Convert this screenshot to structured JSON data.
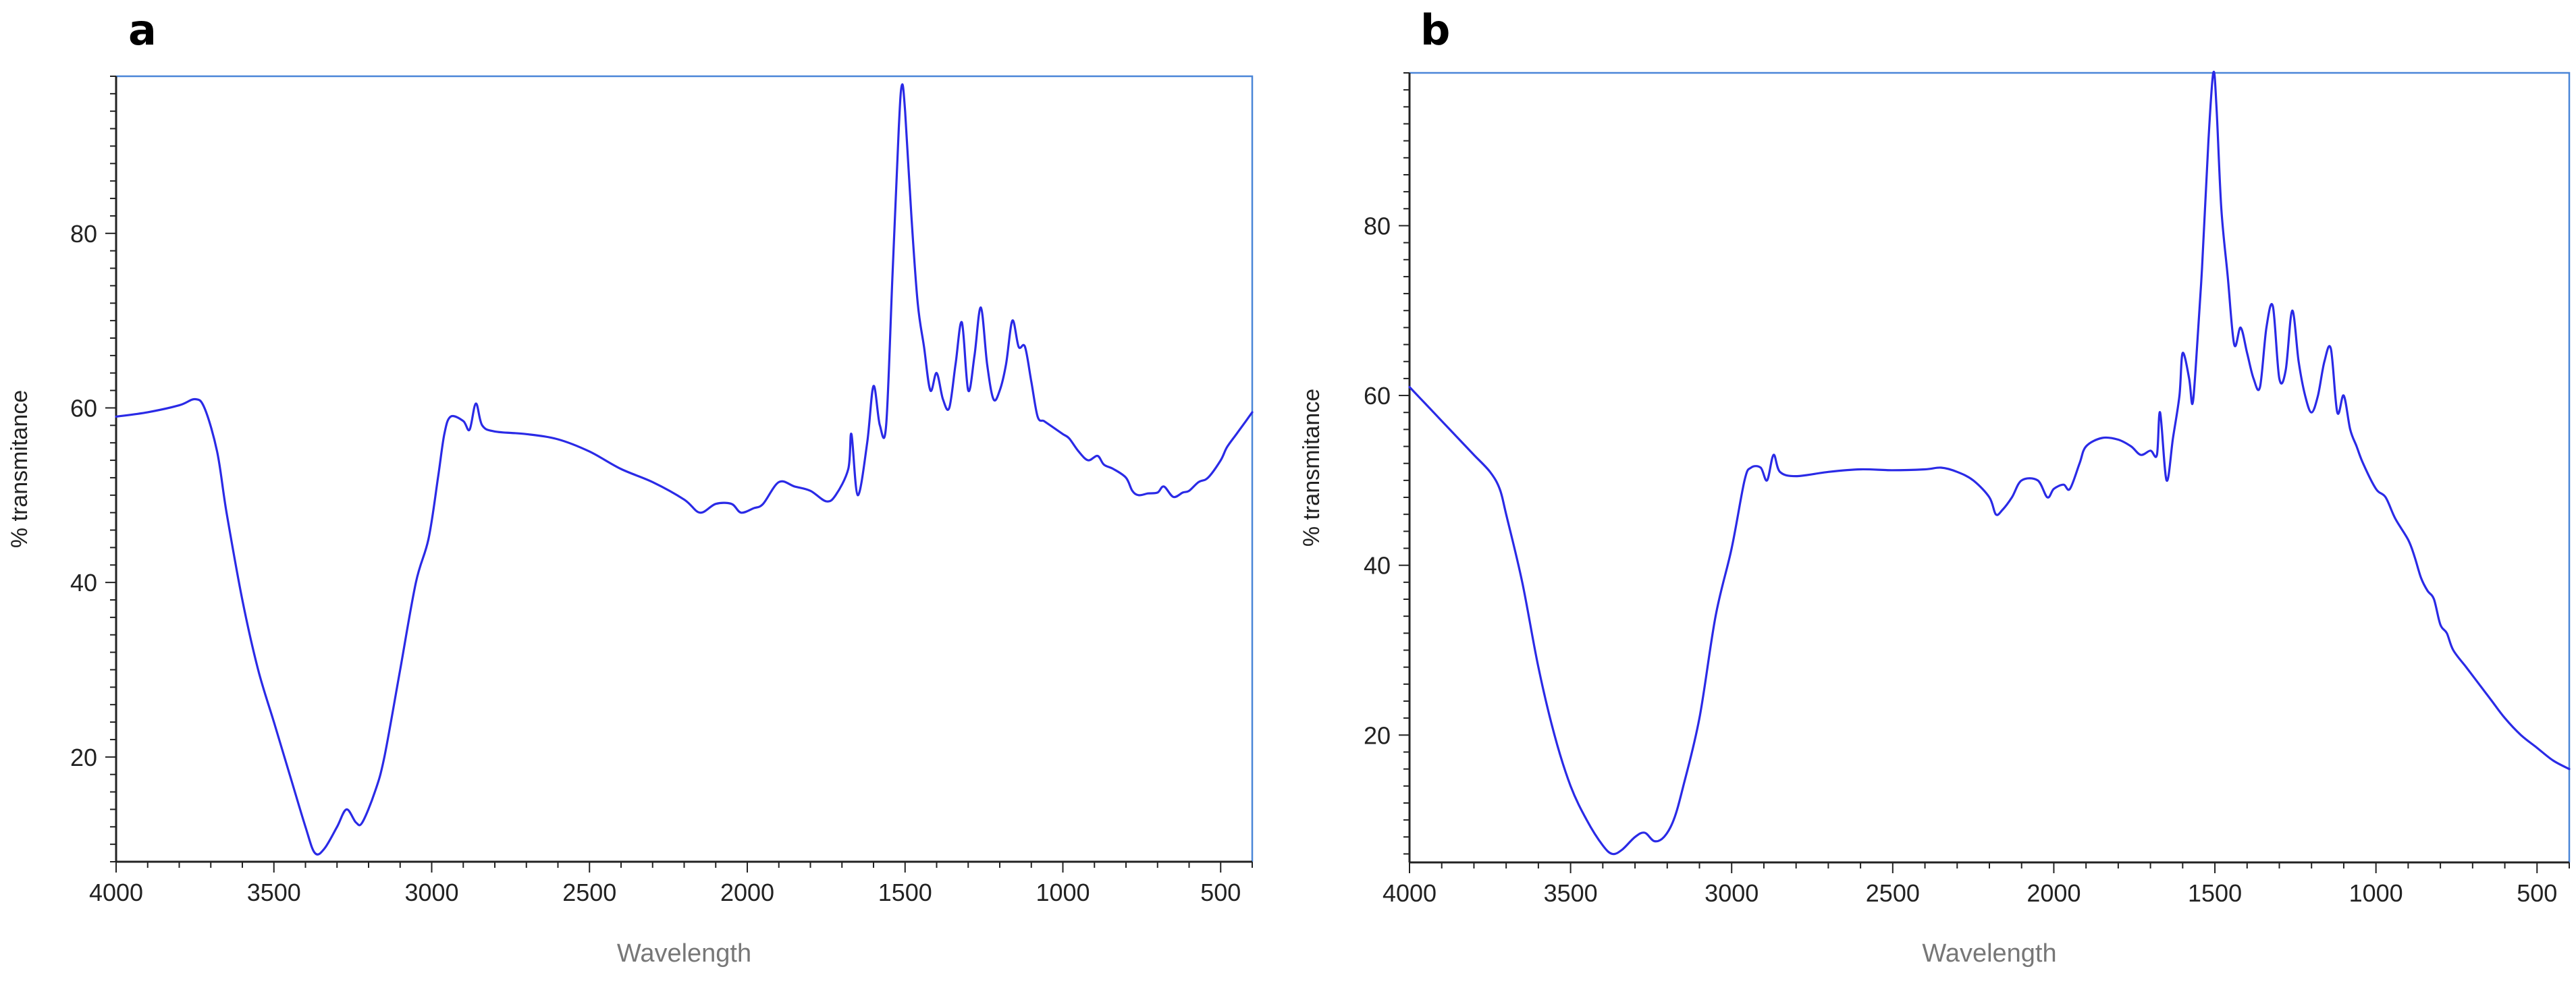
{
  "chart_data": [
    {
      "panel": "a",
      "type": "line",
      "xlabel": "Wavelength",
      "ylabel": "% transmitance",
      "xlim": [
        4000,
        400
      ],
      "ylim": [
        8,
        98
      ],
      "x_ticks": [
        "4000",
        "3500",
        "3000",
        "2500",
        "2000",
        "1500",
        "1000",
        "500"
      ],
      "y_ticks": [
        "20",
        "40",
        "60",
        "80"
      ],
      "grid": false,
      "colors": {
        "line": "#2a2ae6",
        "frame": "#4a86d8",
        "axis": "#222222"
      },
      "series": [
        {
          "points": [
            [
              4000,
              59
            ],
            [
              3900,
              59.5
            ],
            [
              3800,
              60.3
            ],
            [
              3750,
              61
            ],
            [
              3720,
              60
            ],
            [
              3680,
              55
            ],
            [
              3650,
              48
            ],
            [
              3600,
              38
            ],
            [
              3550,
              30
            ],
            [
              3500,
              24
            ],
            [
              3450,
              18
            ],
            [
              3400,
              12
            ],
            [
              3370,
              9
            ],
            [
              3340,
              9.5
            ],
            [
              3300,
              12
            ],
            [
              3270,
              14
            ],
            [
              3240,
              12.5
            ],
            [
              3220,
              12.5
            ],
            [
              3180,
              16
            ],
            [
              3150,
              20
            ],
            [
              3100,
              30
            ],
            [
              3050,
              40
            ],
            [
              3010,
              45
            ],
            [
              2980,
              52
            ],
            [
              2960,
              57
            ],
            [
              2940,
              59
            ],
            [
              2900,
              58.5
            ],
            [
              2880,
              57.5
            ],
            [
              2860,
              60.5
            ],
            [
              2840,
              58
            ],
            [
              2800,
              57.3
            ],
            [
              2700,
              57
            ],
            [
              2600,
              56.4
            ],
            [
              2500,
              55
            ],
            [
              2400,
              53
            ],
            [
              2300,
              51.5
            ],
            [
              2200,
              49.5
            ],
            [
              2150,
              48
            ],
            [
              2100,
              49
            ],
            [
              2050,
              49
            ],
            [
              2020,
              48
            ],
            [
              1980,
              48.5
            ],
            [
              1950,
              49
            ],
            [
              1900,
              51.5
            ],
            [
              1850,
              51
            ],
            [
              1800,
              50.5
            ],
            [
              1750,
              49.3
            ],
            [
              1720,
              50
            ],
            [
              1680,
              53
            ],
            [
              1670,
              57
            ],
            [
              1650,
              50
            ],
            [
              1620,
              56
            ],
            [
              1600,
              62.5
            ],
            [
              1580,
              58
            ],
            [
              1560,
              58
            ],
            [
              1540,
              75
            ],
            [
              1520,
              92
            ],
            [
              1510,
              97
            ],
            [
              1500,
              94
            ],
            [
              1480,
              82
            ],
            [
              1460,
              72
            ],
            [
              1440,
              67
            ],
            [
              1420,
              62
            ],
            [
              1400,
              64
            ],
            [
              1380,
              61
            ],
            [
              1360,
              60
            ],
            [
              1340,
              65
            ],
            [
              1320,
              69.8
            ],
            [
              1300,
              62
            ],
            [
              1280,
              66
            ],
            [
              1260,
              71.5
            ],
            [
              1240,
              65
            ],
            [
              1220,
              61
            ],
            [
              1200,
              62
            ],
            [
              1180,
              65
            ],
            [
              1160,
              70
            ],
            [
              1140,
              67
            ],
            [
              1120,
              67
            ],
            [
              1100,
              63
            ],
            [
              1080,
              59
            ],
            [
              1060,
              58.5
            ],
            [
              1040,
              58
            ],
            [
              1000,
              57
            ],
            [
              980,
              56.5
            ],
            [
              950,
              55
            ],
            [
              920,
              54
            ],
            [
              890,
              54.5
            ],
            [
              870,
              53.5
            ],
            [
              840,
              53
            ],
            [
              800,
              52
            ],
            [
              780,
              50.5
            ],
            [
              760,
              50
            ],
            [
              730,
              50.2
            ],
            [
              700,
              50.3
            ],
            [
              680,
              51
            ],
            [
              650,
              49.8
            ],
            [
              620,
              50.3
            ],
            [
              600,
              50.5
            ],
            [
              570,
              51.5
            ],
            [
              540,
              52
            ],
            [
              500,
              54
            ],
            [
              480,
              55.5
            ],
            [
              450,
              57
            ],
            [
              420,
              58.5
            ],
            [
              400,
              59.5
            ]
          ]
        }
      ]
    },
    {
      "panel": "b",
      "type": "line",
      "xlabel": "Wavelength",
      "ylabel": "% transmitance",
      "xlim": [
        4000,
        400
      ],
      "ylim": [
        5,
        98
      ],
      "x_ticks": [
        "4000",
        "3500",
        "3000",
        "2500",
        "2000",
        "1500",
        "1000",
        "500"
      ],
      "y_ticks": [
        "20",
        "40",
        "60",
        "80"
      ],
      "grid": false,
      "colors": {
        "line": "#2a2ae6",
        "frame": "#4a86d8",
        "axis": "#222222"
      },
      "series": [
        {
          "points": [
            [
              4000,
              61
            ],
            [
              3950,
              59
            ],
            [
              3900,
              57
            ],
            [
              3850,
              55
            ],
            [
              3800,
              53
            ],
            [
              3750,
              51
            ],
            [
              3720,
              49
            ],
            [
              3700,
              46
            ],
            [
              3650,
              38
            ],
            [
              3600,
              28
            ],
            [
              3550,
              20
            ],
            [
              3500,
              14
            ],
            [
              3450,
              10
            ],
            [
              3400,
              7
            ],
            [
              3370,
              6
            ],
            [
              3340,
              6.5
            ],
            [
              3300,
              8
            ],
            [
              3270,
              8.5
            ],
            [
              3240,
              7.5
            ],
            [
              3210,
              8
            ],
            [
              3180,
              10
            ],
            [
              3150,
              14
            ],
            [
              3100,
              22
            ],
            [
              3050,
              34
            ],
            [
              3000,
              42
            ],
            [
              2960,
              50
            ],
            [
              2940,
              51.5
            ],
            [
              2910,
              51.5
            ],
            [
              2890,
              50
            ],
            [
              2870,
              53
            ],
            [
              2850,
              51
            ],
            [
              2800,
              50.5
            ],
            [
              2700,
              51
            ],
            [
              2600,
              51.3
            ],
            [
              2500,
              51.2
            ],
            [
              2400,
              51.3
            ],
            [
              2350,
              51.5
            ],
            [
              2300,
              51
            ],
            [
              2250,
              50
            ],
            [
              2200,
              48
            ],
            [
              2180,
              46
            ],
            [
              2160,
              46.5
            ],
            [
              2130,
              48
            ],
            [
              2100,
              50
            ],
            [
              2050,
              50
            ],
            [
              2020,
              48
            ],
            [
              2000,
              49
            ],
            [
              1970,
              49.5
            ],
            [
              1950,
              49
            ],
            [
              1920,
              52
            ],
            [
              1900,
              54
            ],
            [
              1850,
              55
            ],
            [
              1800,
              54.8
            ],
            [
              1760,
              54
            ],
            [
              1730,
              53
            ],
            [
              1700,
              53.5
            ],
            [
              1680,
              53
            ],
            [
              1670,
              58
            ],
            [
              1650,
              50
            ],
            [
              1630,
              55
            ],
            [
              1610,
              60
            ],
            [
              1600,
              65
            ],
            [
              1580,
              62
            ],
            [
              1570,
              59
            ],
            [
              1560,
              63
            ],
            [
              1540,
              75
            ],
            [
              1520,
              90
            ],
            [
              1505,
              98
            ],
            [
              1495,
              94
            ],
            [
              1480,
              82
            ],
            [
              1460,
              74
            ],
            [
              1440,
              66
            ],
            [
              1420,
              68
            ],
            [
              1400,
              65
            ],
            [
              1380,
              62
            ],
            [
              1360,
              61
            ],
            [
              1340,
              68
            ],
            [
              1320,
              70.5
            ],
            [
              1300,
              62
            ],
            [
              1280,
              63
            ],
            [
              1260,
              70
            ],
            [
              1240,
              64
            ],
            [
              1220,
              60
            ],
            [
              1200,
              58
            ],
            [
              1180,
              60
            ],
            [
              1160,
              64
            ],
            [
              1140,
              65.5
            ],
            [
              1120,
              58
            ],
            [
              1100,
              60
            ],
            [
              1080,
              56
            ],
            [
              1060,
              54
            ],
            [
              1040,
              52
            ],
            [
              1000,
              49
            ],
            [
              970,
              48
            ],
            [
              940,
              45.5
            ],
            [
              900,
              43
            ],
            [
              880,
              41
            ],
            [
              860,
              38.5
            ],
            [
              840,
              37
            ],
            [
              820,
              36
            ],
            [
              800,
              33
            ],
            [
              780,
              32
            ],
            [
              760,
              30
            ],
            [
              720,
              28
            ],
            [
              680,
              26
            ],
            [
              640,
              24
            ],
            [
              600,
              22
            ],
            [
              550,
              20
            ],
            [
              500,
              18.5
            ],
            [
              450,
              17
            ],
            [
              400,
              16
            ]
          ]
        }
      ]
    }
  ]
}
